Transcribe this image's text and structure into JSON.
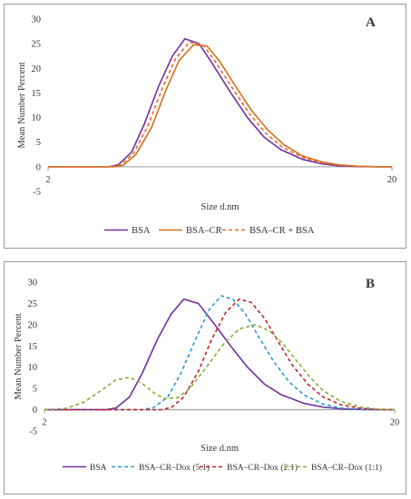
{
  "chart_data": [
    {
      "type": "line",
      "panel_label": "A",
      "ylabel": "Mean Number Percent",
      "xlabel": "Size d.nm",
      "x_scale": "log",
      "xlim": [
        2,
        20
      ],
      "ylim": [
        -5,
        30
      ],
      "y_ticks": [
        -5,
        0,
        5,
        10,
        15,
        20,
        25,
        30
      ],
      "x_tick_labels": [
        "2",
        "20"
      ],
      "legend_position": "bottom",
      "grid": false,
      "series": [
        {
          "name": "BSA",
          "color": "#7030a0",
          "dash": "solid",
          "x": [
            2,
            3.0,
            3.2,
            3.5,
            3.8,
            4.2,
            4.6,
            5.0,
            5.5,
            6.0,
            6.8,
            7.6,
            8.5,
            9.5,
            11,
            12.5,
            14,
            16,
            18,
            20
          ],
          "y": [
            0,
            0,
            0.4,
            3,
            8.5,
            16.5,
            22.5,
            26,
            25,
            21,
            15,
            10,
            6,
            3.5,
            1.5,
            0.6,
            0.2,
            0.05,
            0,
            0
          ]
        },
        {
          "name": "BSA–CR",
          "color": "#d4701c",
          "dash": "solid",
          "x": [
            2,
            3.1,
            3.3,
            3.6,
            4.0,
            4.4,
            4.8,
            5.3,
            5.8,
            6.3,
            7.0,
            7.8,
            8.7,
            9.7,
            11,
            12.5,
            14,
            16,
            18,
            20
          ],
          "y": [
            0,
            0,
            0.3,
            2.5,
            8,
            15.5,
            21.5,
            24.8,
            24.5,
            21.5,
            16.5,
            11.5,
            7.5,
            4.5,
            2.2,
            1,
            0.4,
            0.1,
            0,
            0
          ]
        },
        {
          "name": "BSA–CR + BSA",
          "color": "#e06d2a",
          "dash": "dashed",
          "x": [
            2,
            3.05,
            3.25,
            3.55,
            3.9,
            4.3,
            4.7,
            5.15,
            5.65,
            6.15,
            6.9,
            7.7,
            8.6,
            9.6,
            11,
            12.5,
            14,
            16,
            18,
            20
          ],
          "y": [
            0,
            0,
            0.35,
            2.8,
            8.3,
            16,
            22,
            25.3,
            24.7,
            21.2,
            15.8,
            10.8,
            6.8,
            4,
            1.9,
            0.8,
            0.3,
            0.08,
            0,
            0
          ]
        }
      ]
    },
    {
      "type": "line",
      "panel_label": "B",
      "ylabel": "Mean Number Percent",
      "xlabel": "Size d.nm",
      "x_scale": "log",
      "xlim": [
        2,
        20
      ],
      "ylim": [
        -5,
        30
      ],
      "y_ticks": [
        -5,
        0,
        5,
        10,
        15,
        20,
        25,
        30
      ],
      "x_tick_labels": [
        "2",
        "20"
      ],
      "legend_position": "bottom",
      "grid": false,
      "series": [
        {
          "name": "BSA",
          "color": "#7030a0",
          "dash": "solid",
          "x": [
            2,
            3.0,
            3.2,
            3.5,
            3.8,
            4.2,
            4.6,
            5.0,
            5.5,
            6.0,
            6.8,
            7.6,
            8.5,
            9.5,
            11,
            12.5,
            14,
            16,
            18,
            20
          ],
          "y": [
            0,
            0,
            0.4,
            3,
            8.5,
            16.5,
            22.5,
            26,
            25,
            21,
            15,
            10,
            6,
            3.5,
            1.5,
            0.6,
            0.2,
            0.05,
            0,
            0
          ]
        },
        {
          "name": "BSA–CR–Dox (5:1)",
          "color": "#2e9ad0",
          "dash": "dashed",
          "x": [
            2,
            3.8,
            4.1,
            4.5,
            4.9,
            5.4,
            5.9,
            6.4,
            6.9,
            7.5,
            8.2,
            9.0,
            10,
            11,
            12.5,
            14,
            16,
            18,
            20
          ],
          "y": [
            0,
            0,
            0.5,
            3,
            8.5,
            16.5,
            23.5,
            26.8,
            26,
            22.5,
            17,
            11.5,
            6.5,
            3.5,
            1.3,
            0.4,
            0.1,
            0,
            0
          ]
        },
        {
          "name": "BSA–CR–Dox (2:1)",
          "color": "#c0272d",
          "dash": "dashed",
          "x": [
            2,
            4.3,
            4.6,
            5.0,
            5.5,
            6.0,
            6.6,
            7.2,
            7.8,
            8.5,
            9.3,
            10.2,
            11.3,
            12.5,
            14,
            16,
            18,
            20
          ],
          "y": [
            0,
            0,
            0.5,
            3,
            9,
            16.5,
            23,
            26,
            25.2,
            21.5,
            16,
            10.5,
            6,
            3,
            1.2,
            0.3,
            0.05,
            0
          ]
        },
        {
          "name": "BSA–CR–Dox (1:1)",
          "color": "#8aaa3c",
          "dash": "dashed",
          "x": [
            2,
            2.3,
            2.6,
            2.9,
            3.2,
            3.5,
            3.8,
            4.1,
            4.4,
            4.8,
            5.2,
            5.8,
            6.5,
            7.2,
            8.0,
            8.8,
            9.6,
            10.5,
            11.5,
            12.5,
            14,
            16,
            18,
            20
          ],
          "y": [
            0,
            0.3,
            1.8,
            4.5,
            7,
            7.6,
            6.2,
            4,
            2.6,
            2.8,
            5,
            10,
            15.5,
            19,
            20,
            18.5,
            15.5,
            11.5,
            7.5,
            4.5,
            2,
            0.6,
            0.1,
            0
          ]
        }
      ]
    }
  ]
}
